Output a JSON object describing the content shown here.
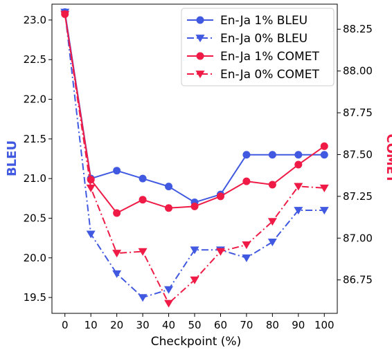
{
  "chart_data": {
    "type": "line",
    "xlabel": "Checkpoint (%)",
    "x": [
      0,
      10,
      20,
      30,
      40,
      50,
      60,
      70,
      80,
      90,
      100
    ],
    "xticks": [
      "0",
      "10",
      "20",
      "30",
      "40",
      "50",
      "60",
      "70",
      "80",
      "90",
      "100"
    ],
    "left_axis": {
      "label": "BLEU",
      "color": "#4159e1",
      "ylim": [
        19.3,
        23.2
      ],
      "ticks": [
        "19.5",
        "20.0",
        "20.5",
        "21.0",
        "21.5",
        "22.0",
        "22.5",
        "23.0"
      ]
    },
    "right_axis": {
      "label": "COMET",
      "color": "#ef1b46",
      "ylim": [
        86.55,
        88.4
      ],
      "ticks": [
        "86.75",
        "87.00",
        "87.25",
        "87.50",
        "87.75",
        "88.00",
        "88.25"
      ]
    },
    "series": [
      {
        "name": "En-Ja 1% BLEU",
        "axis": "left",
        "color": "#4159e1",
        "marker": "circle",
        "dash": "solid",
        "values": [
          23.1,
          21.0,
          21.1,
          21.0,
          20.9,
          20.7,
          20.8,
          21.3,
          21.3,
          21.3,
          21.3
        ]
      },
      {
        "name": "En-Ja 0% BLEU",
        "axis": "left",
        "color": "#4159e1",
        "marker": "triangle-down",
        "dash": "dashdot",
        "values": [
          23.1,
          20.3,
          19.8,
          19.5,
          19.6,
          20.1,
          20.1,
          20.0,
          20.2,
          20.6,
          20.6
        ]
      },
      {
        "name": "En-Ja 1% COMET",
        "axis": "right",
        "color": "#ef1b46",
        "marker": "circle",
        "dash": "solid",
        "values": [
          88.34,
          87.35,
          87.15,
          87.23,
          87.18,
          87.19,
          87.25,
          87.34,
          87.32,
          87.44,
          87.55
        ]
      },
      {
        "name": "En-Ja 0% COMET",
        "axis": "right",
        "color": "#ef1b46",
        "marker": "triangle-down",
        "dash": "dashdot",
        "values": [
          88.34,
          87.3,
          86.91,
          86.92,
          86.61,
          86.75,
          86.92,
          86.96,
          87.1,
          87.31,
          87.3
        ]
      }
    ],
    "legend": "top-right",
    "grid": false
  }
}
